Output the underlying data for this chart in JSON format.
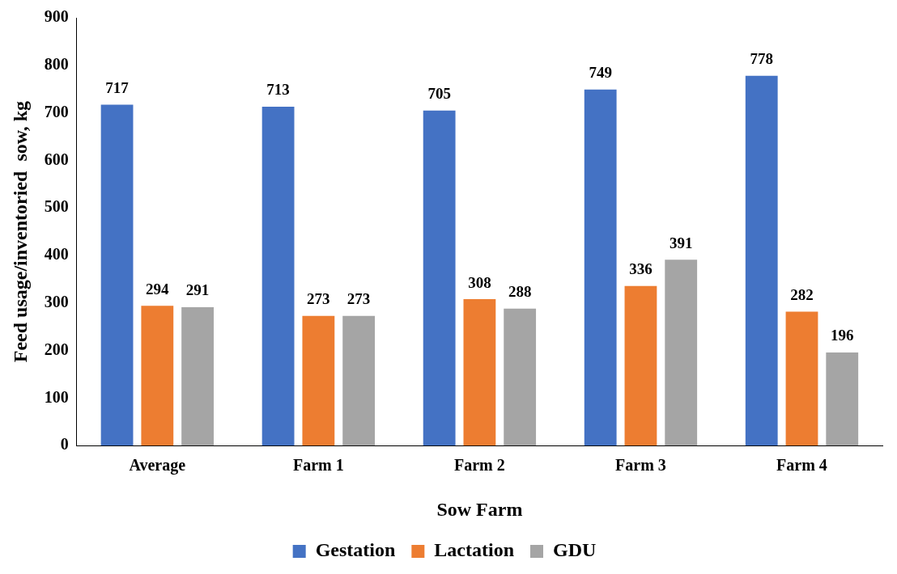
{
  "chart_data": {
    "type": "bar",
    "xlabel": "Sow Farm",
    "ylabel": "Feed usage/inventoried  sow, kg",
    "categories": [
      "Average",
      "Farm 1",
      "Farm 2",
      "Farm 3",
      "Farm 4"
    ],
    "series": [
      {
        "name": "Gestation",
        "color": "#4472c4",
        "values": [
          717,
          713,
          705,
          749,
          778
        ]
      },
      {
        "name": "Lactation",
        "color": "#ed7d31",
        "values": [
          294,
          273,
          308,
          336,
          282
        ]
      },
      {
        "name": "GDU",
        "color": "#a5a5a5",
        "values": [
          291,
          273,
          288,
          391,
          196
        ]
      }
    ],
    "ylim": [
      0,
      900
    ],
    "yticks": [
      0,
      100,
      200,
      300,
      400,
      500,
      600,
      700,
      800,
      900
    ],
    "grid": false,
    "legend": "bottom",
    "data_labels": true
  }
}
